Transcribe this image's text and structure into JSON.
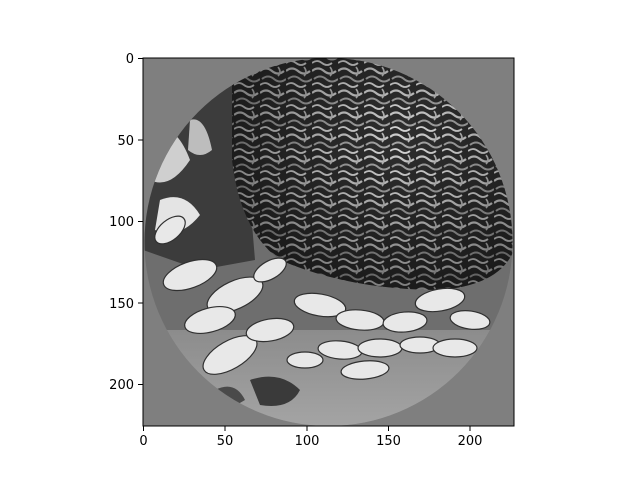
{
  "image": {
    "description_tag": "grayscale-circular-crop-brain-coral-and-fish",
    "background_gray": "#7f7f7f",
    "colormap": "gray"
  },
  "axes": {
    "x_ticks": [
      "0",
      "50",
      "100",
      "150",
      "200"
    ],
    "y_ticks": [
      "0",
      "50",
      "100",
      "150",
      "200"
    ],
    "x_range": [
      0,
      227
    ],
    "y_range": [
      227,
      0
    ]
  }
}
